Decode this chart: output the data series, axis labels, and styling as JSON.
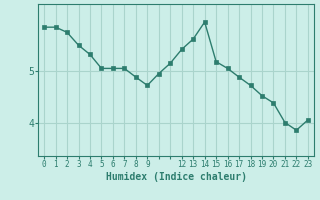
{
  "x": [
    0,
    1,
    2,
    3,
    4,
    5,
    6,
    7,
    8,
    9,
    10,
    11,
    12,
    13,
    14,
    15,
    16,
    17,
    18,
    19,
    20,
    21,
    22,
    23
  ],
  "y": [
    5.85,
    5.85,
    5.75,
    5.5,
    5.32,
    5.05,
    5.05,
    5.05,
    4.88,
    4.72,
    4.95,
    5.15,
    5.42,
    5.62,
    5.95,
    5.18,
    5.05,
    4.88,
    4.72,
    4.52,
    4.38,
    4.0,
    3.85,
    4.05
  ],
  "xlabel": "Humidex (Indice chaleur)",
  "line_color": "#2d7d6e",
  "marker_color": "#2d7d6e",
  "bg_color": "#cceee8",
  "grid_color": "#aad4cc",
  "axis_color": "#2d7d6e",
  "yticks": [
    4,
    5
  ],
  "xtick_labels": [
    "0",
    "1",
    "2",
    "3",
    "4",
    "5",
    "6",
    "7",
    "8",
    "9",
    "",
    "",
    "12",
    "13",
    "14",
    "15",
    "16",
    "17",
    "18",
    "19",
    "20",
    "21",
    "22",
    "23"
  ],
  "ylim": [
    3.35,
    6.3
  ],
  "xlim": [
    -0.5,
    23.5
  ]
}
